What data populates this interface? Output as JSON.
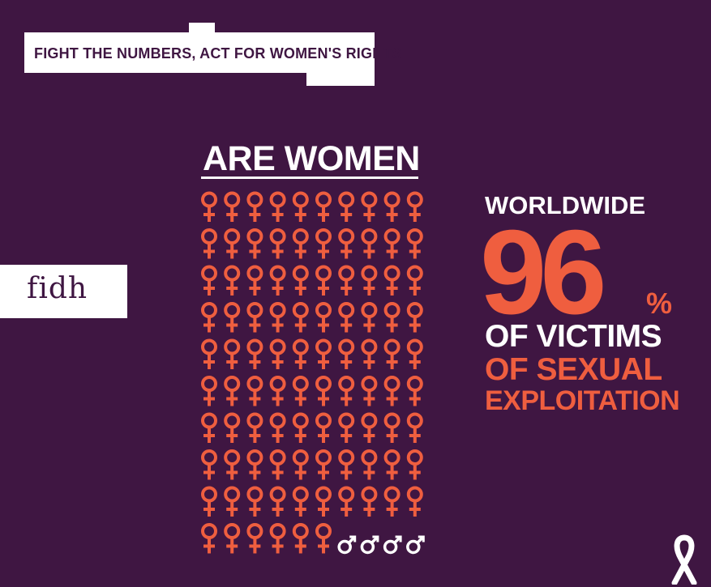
{
  "banner": {
    "text": "FIGHT THE NUMBERS, ACT FOR WOMEN'S RIGHTS"
  },
  "logo": {
    "text": "fidh"
  },
  "heading": "ARE WOMEN",
  "stat": {
    "prefix": "WORLDWIDE",
    "number": "96",
    "percent_sign": "%",
    "line1": "OF VICTIMS",
    "line2": "OF SEXUAL",
    "line3": "EXPLOITATION"
  },
  "grid": {
    "total": 100,
    "female": 96,
    "male": 4,
    "rows": 10,
    "cols": 10
  },
  "colors": {
    "background": "#3f1642",
    "accent": "#ef5e3f",
    "white": "#ffffff"
  },
  "icons": {
    "female": "female-symbol-icon",
    "male": "male-symbol-icon",
    "ribbon": "awareness-ribbon-icon"
  }
}
